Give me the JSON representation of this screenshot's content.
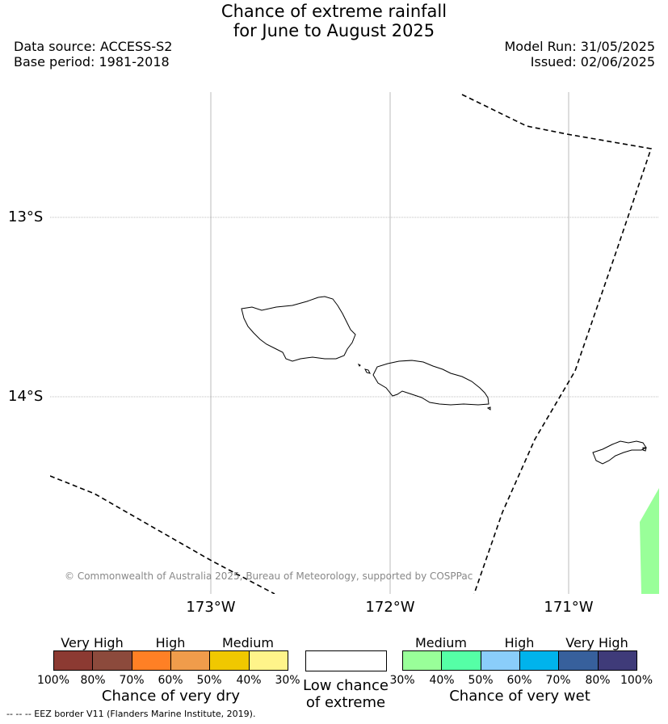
{
  "title_line1": "Chance of extreme rainfall",
  "title_line2": "for June to August 2025",
  "data_source": "Data source: ACCESS-S2",
  "base_period": "Base period: 1981-2018",
  "model_run": "Model Run: 31/05/2025",
  "issued": "Issued: 02/06/2025",
  "map": {
    "lat_labels": [
      "13°S",
      "14°S"
    ],
    "lon_labels": [
      "173°W",
      "172°W",
      "171°W"
    ],
    "copyright": "© Commonwealth of Australia 2025, Bureau of Meteorology, supported by COSPPac",
    "islands": [
      "Savai'i",
      "Upolu",
      "Tutuila"
    ],
    "colors": {
      "eez_line": "#000000",
      "coast": "#000000",
      "wet_shading": "#99ff99"
    }
  },
  "legend_dry": {
    "categories": [
      "Very High",
      "High",
      "Medium"
    ],
    "ticks": [
      "100%",
      "80%",
      "70%",
      "60%",
      "50%",
      "40%",
      "30%"
    ],
    "colors": [
      "#8c3a32",
      "#8c4a3c",
      "#ff8025",
      "#f09c4b",
      "#f0c800",
      "#fff48a"
    ],
    "label": "Chance of very dry"
  },
  "legend_low": {
    "line1": "Low chance",
    "line2": "of extreme",
    "color": "#ffffff"
  },
  "legend_wet": {
    "categories": [
      "Medium",
      "High",
      "Very High"
    ],
    "ticks": [
      "30%",
      "40%",
      "50%",
      "60%",
      "70%",
      "80%",
      "100%"
    ],
    "colors": [
      "#99ff99",
      "#55ffa6",
      "#8acdfa",
      "#00b3ec",
      "#37609c",
      "#3f3b79"
    ],
    "label": "Chance of very wet"
  },
  "footnote": "--  --  -- EEZ border V11 (Flanders Marine Institute, 2019)."
}
